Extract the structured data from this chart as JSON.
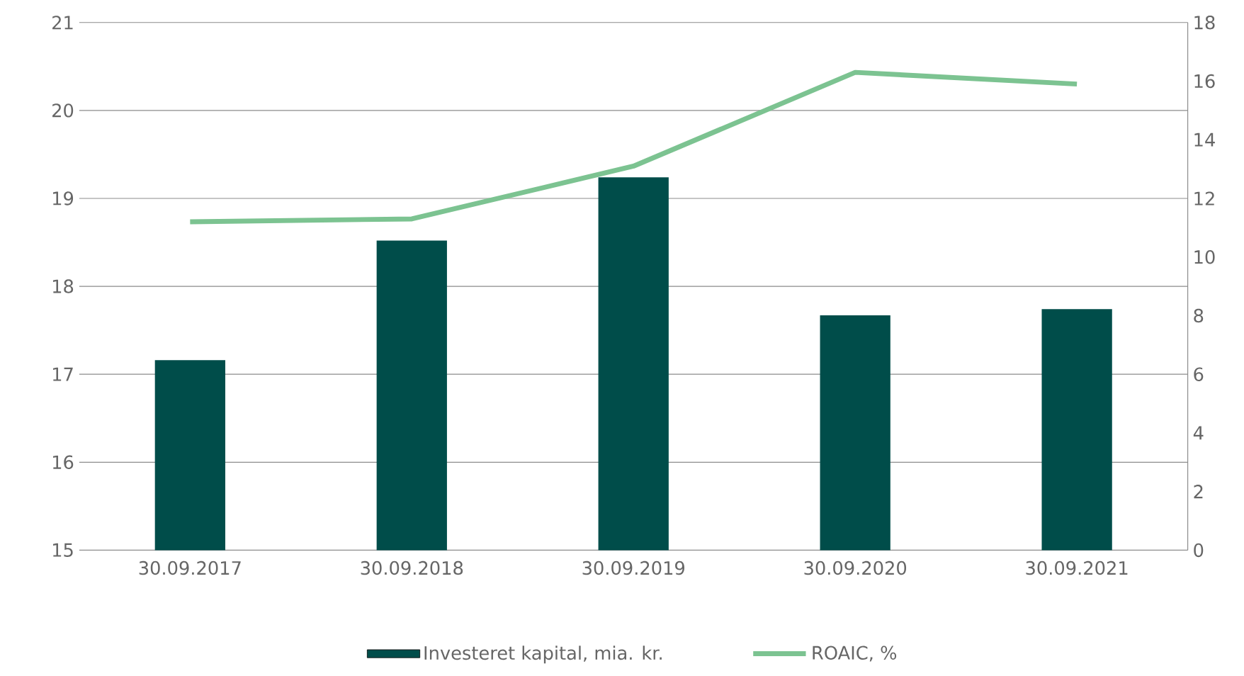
{
  "chart_data": {
    "type": "bar",
    "categories": [
      "30.09.2017",
      "30.09.2018",
      "30.09.2019",
      "30.09.2020",
      "30.09.2021"
    ],
    "series": [
      {
        "name": "Investeret kapital, mia. kr.",
        "color": "#004d4a",
        "values": [
          17.16,
          18.52,
          19.24,
          17.67,
          17.74
        ]
      },
      {
        "name": "ROAIC, %",
        "color": "#7cc391",
        "type": "line",
        "axis": "y2",
        "values": [
          11.2,
          11.3,
          13.1,
          16.3,
          15.9
        ]
      }
    ],
    "ylim": [
      15,
      21
    ],
    "yticks": [
      15,
      16,
      17,
      18,
      19,
      20,
      21
    ],
    "y2lim": [
      0,
      18
    ],
    "y2ticks": [
      0,
      2,
      4,
      6,
      8,
      10,
      12,
      14,
      16,
      18
    ],
    "grid": "y",
    "legend": "bottom",
    "marker": "none",
    "line_style": "solid"
  }
}
